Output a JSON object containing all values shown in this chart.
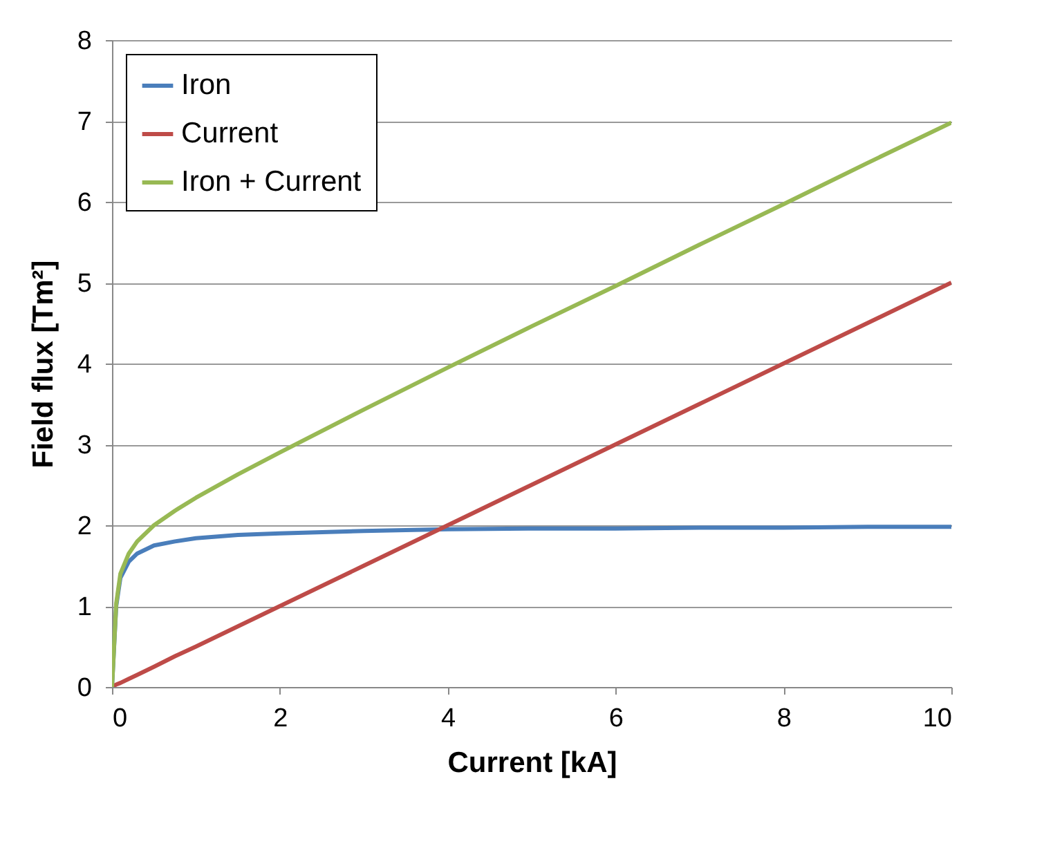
{
  "chart_data": {
    "type": "line",
    "xlabel": "Current [kA]",
    "ylabel": "Field flux [Tm²]",
    "x": [
      0,
      0.05,
      0.1,
      0.2,
      0.3,
      0.5,
      0.75,
      1,
      1.5,
      2,
      3,
      4,
      5,
      6,
      7,
      8,
      9,
      10
    ],
    "series": [
      {
        "name": "Iron",
        "color": "#4a7ebb",
        "values": [
          0,
          1.0,
          1.35,
          1.55,
          1.65,
          1.75,
          1.8,
          1.84,
          1.88,
          1.9,
          1.93,
          1.95,
          1.96,
          1.96,
          1.97,
          1.97,
          1.98,
          1.98
        ]
      },
      {
        "name": "Current",
        "color": "#be4b48",
        "values": [
          0,
          0.03,
          0.05,
          0.1,
          0.15,
          0.25,
          0.38,
          0.5,
          0.75,
          1,
          1.5,
          2,
          2.5,
          3,
          3.5,
          4,
          4.5,
          5
        ]
      },
      {
        "name": "Iron + Current",
        "color": "#98b954",
        "values": [
          0,
          1.03,
          1.4,
          1.65,
          1.8,
          2.0,
          2.18,
          2.34,
          2.63,
          2.9,
          3.43,
          3.95,
          4.46,
          4.96,
          5.47,
          5.97,
          6.48,
          6.98
        ]
      }
    ],
    "xlim": [
      0,
      10
    ],
    "xticks": [
      0,
      2,
      4,
      6,
      8,
      10
    ],
    "ylim": [
      0,
      8
    ],
    "yticks": [
      0,
      1,
      2,
      3,
      4,
      5,
      6,
      7,
      8
    ],
    "grid": "y",
    "legend": "top left",
    "marker": "none",
    "line_style": "solid"
  }
}
